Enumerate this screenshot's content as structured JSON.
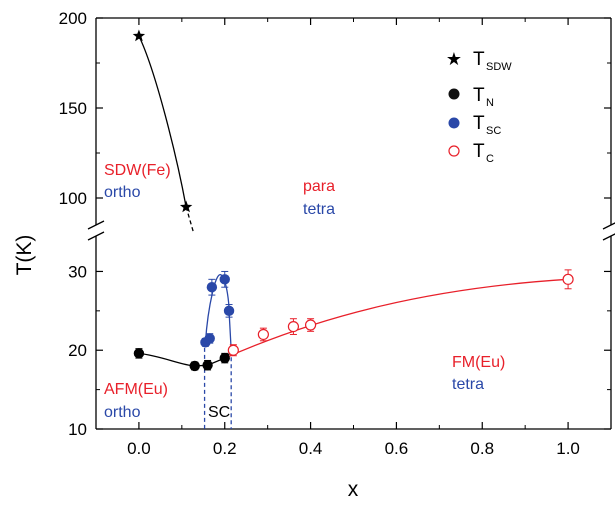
{
  "chart_data": {
    "type": "scatter",
    "xlabel": "x",
    "ylabel": "T(K)",
    "xlim": [
      -0.1,
      1.1
    ],
    "ylim_lower": [
      10,
      34.5
    ],
    "ylim_upper": [
      85,
      200
    ],
    "axis_break": true,
    "x_ticks": [
      "0.0",
      "0.2",
      "0.4",
      "0.6",
      "0.8",
      "1.0"
    ],
    "y_ticks_lower": [
      "10",
      "20",
      "30"
    ],
    "y_ticks_upper": [
      "100",
      "150",
      "200"
    ],
    "grid": false,
    "legend_position": "top-right",
    "series": [
      {
        "name": "T",
        "sub": "SDW",
        "marker": "star",
        "color": "#000000",
        "points": [
          {
            "x": 0.0,
            "y": 190
          },
          {
            "x": 0.11,
            "y": 95
          }
        ]
      },
      {
        "name": "T",
        "sub": "N",
        "marker": "filled-circle",
        "color": "#000000",
        "points": [
          {
            "x": 0.0,
            "y": 19.6,
            "err": 0.6
          },
          {
            "x": 0.13,
            "y": 18.0,
            "err": 0.5
          },
          {
            "x": 0.16,
            "y": 18.1,
            "err": 0.6
          },
          {
            "x": 0.2,
            "y": 19.0,
            "err": 0.6
          }
        ]
      },
      {
        "name": "T",
        "sub": "SC",
        "marker": "filled-circle",
        "color": "#2a48a8",
        "points": [
          {
            "x": 0.155,
            "y": 21.0,
            "err": 0.5
          },
          {
            "x": 0.165,
            "y": 21.5,
            "err": 0.6
          },
          {
            "x": 0.17,
            "y": 28.0,
            "err": 1.0
          },
          {
            "x": 0.2,
            "y": 29.0,
            "err": 1.0
          },
          {
            "x": 0.21,
            "y": 25.0,
            "err": 0.8
          }
        ]
      },
      {
        "name": "T",
        "sub": "C",
        "marker": "open-circle",
        "color": "#e8202a",
        "points": [
          {
            "x": 0.22,
            "y": 20.0,
            "err": 0.7
          },
          {
            "x": 0.29,
            "y": 22.0,
            "err": 0.8
          },
          {
            "x": 0.36,
            "y": 23.0,
            "err": 1.0
          },
          {
            "x": 0.4,
            "y": 23.2,
            "err": 0.8
          },
          {
            "x": 1.0,
            "y": 29.0,
            "err": 1.2
          }
        ]
      }
    ],
    "annotations": [
      {
        "text": "SDW(Fe)",
        "color": "#e8202a"
      },
      {
        "text": "ortho",
        "color": "#2a48a8"
      },
      {
        "text": "para",
        "color": "#e8202a"
      },
      {
        "text": "tetra",
        "color": "#2a48a8"
      },
      {
        "text": "FM(Eu)",
        "color": "#e8202a"
      },
      {
        "text": "tetra",
        "color": "#2a48a8"
      },
      {
        "text": "AFM(Eu)",
        "color": "#e8202a"
      },
      {
        "text": "ortho",
        "color": "#2a48a8"
      },
      {
        "text": "SC",
        "color": "#000000"
      }
    ]
  }
}
